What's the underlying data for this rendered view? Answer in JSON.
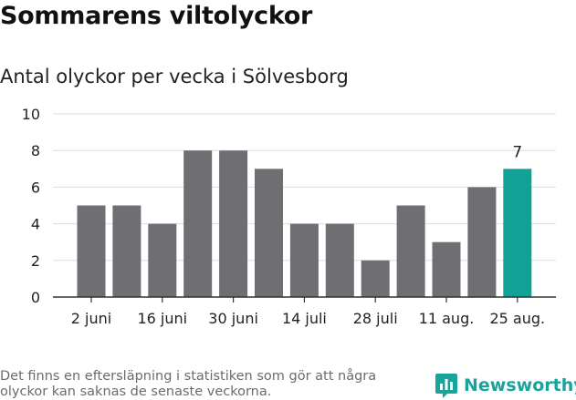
{
  "header": {
    "title": "Sommarens viltolyckor",
    "subtitle": "Antal olyckor per vecka i Sölvesborg"
  },
  "footer": {
    "note": "Det finns en eftersläpning i statistiken som gör att några olyckor kan saknas de senaste veckorna.",
    "brand": "Newsworthy"
  },
  "colors": {
    "bar": "#6f6e72",
    "highlight": "#12a295",
    "grid": "#dddddd",
    "brand": "#1aa39a"
  },
  "chart_data": {
    "type": "bar",
    "title": "Sommarens viltolyckor",
    "subtitle": "Antal olyckor per vecka i Sölvesborg",
    "xlabel": "",
    "ylabel": "",
    "ylim": [
      0,
      10
    ],
    "yticks": [
      0,
      2,
      4,
      6,
      8,
      10
    ],
    "values": [
      5,
      5,
      4,
      8,
      8,
      7,
      4,
      4,
      2,
      5,
      3,
      6,
      7
    ],
    "xtick_labels": [
      {
        "index": 0,
        "label": "2 juni"
      },
      {
        "index": 2,
        "label": "16 juni"
      },
      {
        "index": 4,
        "label": "30 juni"
      },
      {
        "index": 6,
        "label": "14 juli"
      },
      {
        "index": 8,
        "label": "28 juli"
      },
      {
        "index": 10,
        "label": "11 aug."
      },
      {
        "index": 12,
        "label": "25 aug."
      }
    ],
    "highlight_index": 12,
    "highlight_label": "7",
    "grid": true,
    "legend": "none"
  }
}
